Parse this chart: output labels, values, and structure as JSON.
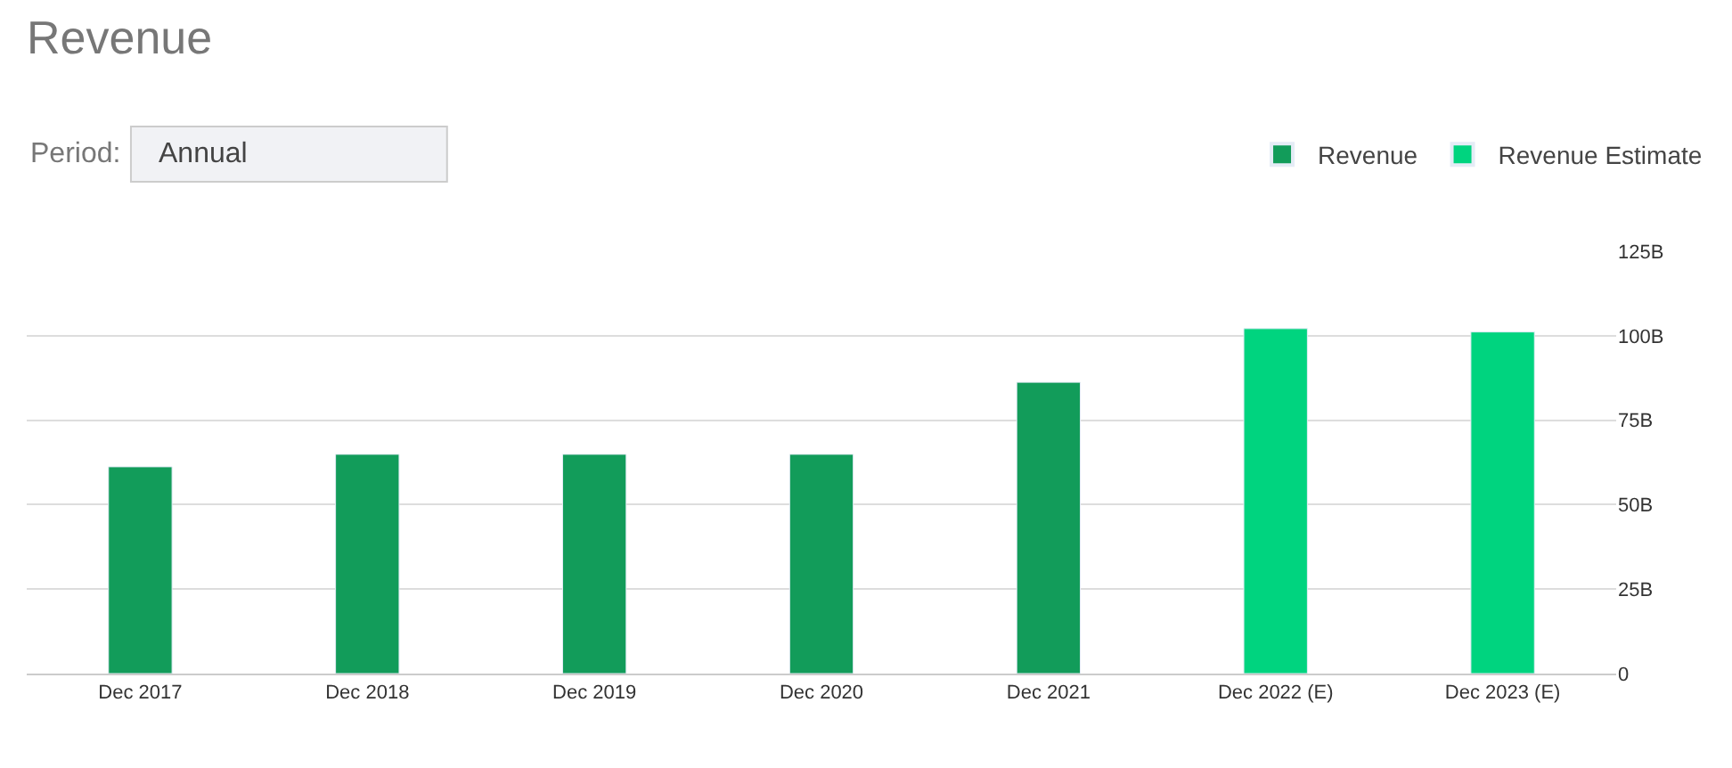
{
  "chart_data": {
    "type": "bar",
    "title": "Revenue",
    "categories": [
      "Dec 2017",
      "Dec 2018",
      "Dec 2019",
      "Dec 2020",
      "Dec 2021",
      "Dec 2022 (E)",
      "Dec 2023 (E)"
    ],
    "series": [
      {
        "name": "Revenue",
        "color": "#129c5a",
        "values": [
          61.2,
          64.9,
          64.9,
          64.9,
          86.2,
          null,
          null
        ]
      },
      {
        "name": "Revenue Estimate",
        "color": "#00d47f",
        "values": [
          null,
          null,
          null,
          null,
          null,
          102.1,
          101.1
        ]
      }
    ],
    "ylim": [
      0,
      125
    ],
    "yticks": [
      {
        "value": 0,
        "label": "0"
      },
      {
        "value": 25,
        "label": "25B"
      },
      {
        "value": 50,
        "label": "50B"
      },
      {
        "value": 75,
        "label": "75B"
      },
      {
        "value": 100,
        "label": "100B"
      },
      {
        "value": 125,
        "label": "125B"
      }
    ],
    "annotations": [
      "Period:",
      "Annual"
    ],
    "grid": "y",
    "legend": "top right"
  }
}
